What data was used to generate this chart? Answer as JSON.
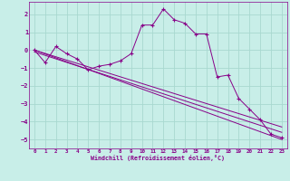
{
  "xlabel": "Windchill (Refroidissement éolien,°C)",
  "bg_color": "#c8eee8",
  "grid_color": "#a8d8d0",
  "line_color": "#880088",
  "spine_color": "#880088",
  "xlim": [
    -0.5,
    23.5
  ],
  "ylim": [
    -5.5,
    2.7
  ],
  "yticks": [
    -5,
    -4,
    -3,
    -2,
    -1,
    0,
    1,
    2
  ],
  "xticks": [
    0,
    1,
    2,
    3,
    4,
    5,
    6,
    7,
    8,
    9,
    10,
    11,
    12,
    13,
    14,
    15,
    16,
    17,
    18,
    19,
    20,
    21,
    22,
    23
  ],
  "line1_x": [
    0,
    1,
    2,
    3,
    4,
    5,
    6,
    7,
    8,
    9,
    10,
    11,
    12,
    13,
    14,
    15,
    16,
    17,
    18,
    19,
    20,
    21,
    22,
    23
  ],
  "line1_y": [
    0.0,
    -0.7,
    0.2,
    -0.2,
    -0.5,
    -1.1,
    -0.9,
    -0.8,
    -0.6,
    -0.2,
    1.4,
    1.4,
    2.3,
    1.7,
    1.5,
    0.9,
    0.9,
    -1.5,
    -1.4,
    -2.7,
    -3.3,
    -3.9,
    -4.7,
    -4.9
  ],
  "line2_x": [
    0,
    23
  ],
  "line2_y": [
    0.0,
    -5.0
  ],
  "line3_x": [
    0,
    23
  ],
  "line3_y": [
    -0.1,
    -4.6
  ],
  "line4_x": [
    0,
    23
  ],
  "line4_y": [
    0.0,
    -4.3
  ]
}
